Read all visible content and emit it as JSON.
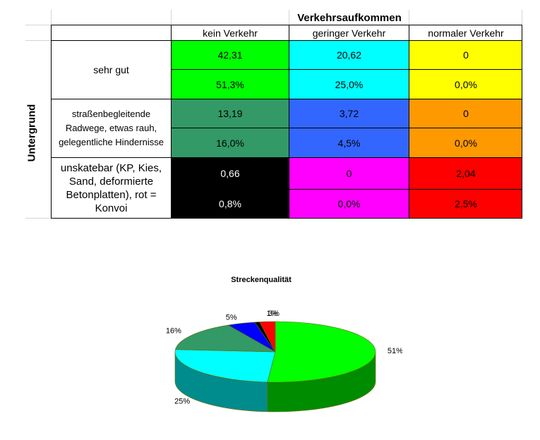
{
  "table": {
    "title": "Verkehrsaufkommen",
    "side_label": "Untergrund",
    "columns": [
      "kein Verkehr",
      "geringer Verkehr",
      "normaler Verkehr"
    ],
    "rows": [
      {
        "label": "sehr gut",
        "values": [
          "42,31",
          "20,62",
          "0"
        ],
        "percents": [
          "51,3%",
          "25,0%",
          "0,0%"
        ],
        "colors": [
          "#00ff00",
          "#00ffff",
          "#ffff00"
        ]
      },
      {
        "label": "straßenbegleitende Radwege, etwas rauh, gelegentliche Hindernisse",
        "values": [
          "13,19",
          "3,72",
          "0"
        ],
        "percents": [
          "16,0%",
          "4,5%",
          "0,0%"
        ],
        "colors": [
          "#339966",
          "#3366ff",
          "#ff9900"
        ]
      },
      {
        "label": "unskatebar (KP, Kies, Sand, deformierte Betonplatten), rot = Konvoi",
        "values": [
          "0,66",
          "0",
          "2,04"
        ],
        "percents": [
          "0,8%",
          "0,0%",
          "2,5%"
        ],
        "colors": [
          "#000000",
          "#ff00ff",
          "#ff0000"
        ]
      }
    ]
  },
  "chart_data": {
    "type": "pie",
    "title": "Streckenqualität",
    "slices": [
      {
        "value": 51.3,
        "label": "51%",
        "color": "#00ff00"
      },
      {
        "value": 25.0,
        "label": "25%",
        "color": "#00ffff"
      },
      {
        "value": 16.0,
        "label": "16%",
        "color": "#339966"
      },
      {
        "value": 4.5,
        "label": "5%",
        "color": "#0000ff"
      },
      {
        "value": 0.8,
        "label": "1%",
        "color": "#000000"
      },
      {
        "value": 2.5,
        "label": "3%",
        "color": "#ff0000"
      }
    ],
    "style": "3d",
    "legend": "none"
  }
}
